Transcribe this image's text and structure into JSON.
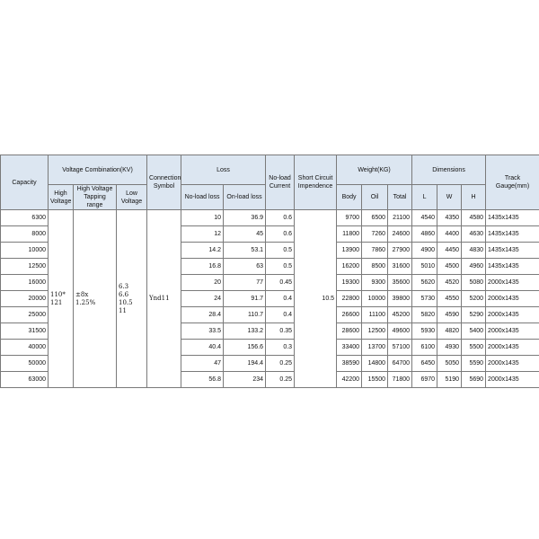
{
  "table": {
    "headers": {
      "capacity": "Capacity",
      "voltage": "Voltage Combination(KV)",
      "high_voltage": "High Voltage",
      "tapping": "High Voltage Tapping range",
      "low_voltage": "Low Voltage",
      "connection": "Connection Symbol",
      "loss": "Loss",
      "no_load_loss": "No-load loss",
      "on_load_loss": "On-load loss",
      "current": "No-load Current",
      "impedance": "Short Circuit Impendence",
      "weight": "Weight(KG)",
      "body": "Body",
      "oil": "Oil",
      "total": "Total",
      "dimensions": "Dimensions",
      "l": "L",
      "w": "W",
      "h": "H",
      "track": "Track Gauge(mm)"
    },
    "merged": {
      "high_voltage": [
        "110*",
        "121"
      ],
      "tapping": [
        "±8x",
        "1.25%"
      ],
      "low_voltage": [
        "6.3",
        "6.6",
        "10.5",
        "11"
      ],
      "connection": "Ynd11",
      "impedance": "10.5"
    },
    "rows": [
      [
        "6300",
        "10",
        "36.9",
        "0.6",
        "9700",
        "6500",
        "21100",
        "4540",
        "4350",
        "4580",
        "1435x1435"
      ],
      [
        "8000",
        "12",
        "45",
        "0.6",
        "11800",
        "7260",
        "24600",
        "4860",
        "4400",
        "4630",
        "1435x1435"
      ],
      [
        "10000",
        "14.2",
        "53.1",
        "0.5",
        "13900",
        "7860",
        "27900",
        "4900",
        "4450",
        "4830",
        "1435x1435"
      ],
      [
        "12500",
        "16.8",
        "63",
        "0.5",
        "16200",
        "8500",
        "31600",
        "5010",
        "4500",
        "4960",
        "1435x1435"
      ],
      [
        "16000",
        "20",
        "77",
        "0.45",
        "19300",
        "9300",
        "35600",
        "5620",
        "4520",
        "5080",
        "2000x1435"
      ],
      [
        "20000",
        "24",
        "91.7",
        "0.4",
        "22800",
        "10000",
        "39800",
        "5730",
        "4550",
        "5200",
        "2000x1435"
      ],
      [
        "25000",
        "28.4",
        "110.7",
        "0.4",
        "26600",
        "11100",
        "45200",
        "5820",
        "4590",
        "5290",
        "2000x1435"
      ],
      [
        "31500",
        "33.5",
        "133.2",
        "0.35",
        "28600",
        "12500",
        "49600",
        "5930",
        "4820",
        "5400",
        "2000x1435"
      ],
      [
        "40000",
        "40.4",
        "156.6",
        "0.3",
        "33400",
        "13700",
        "57100",
        "6100",
        "4930",
        "5500",
        "2000x1435"
      ],
      [
        "50000",
        "47",
        "194.4",
        "0.25",
        "38590",
        "14800",
        "64700",
        "6450",
        "5050",
        "5590",
        "2000x1435"
      ],
      [
        "63000",
        "56.8",
        "234",
        "0.25",
        "42200",
        "15500",
        "71800",
        "6970",
        "5190",
        "5690",
        "2000x1435"
      ]
    ]
  }
}
